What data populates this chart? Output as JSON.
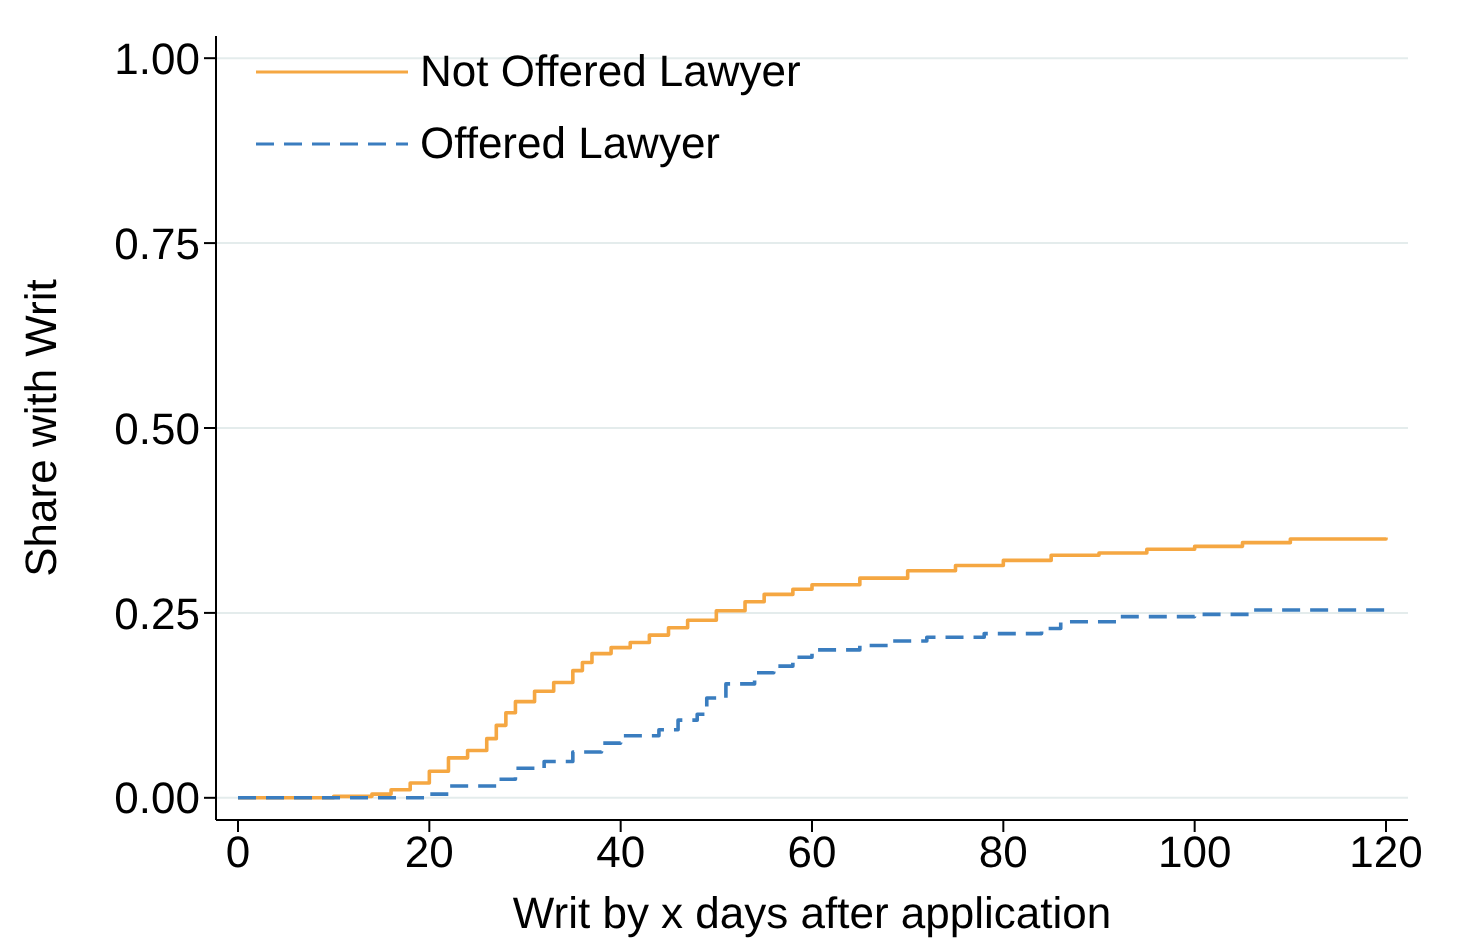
{
  "chart_data": {
    "type": "step",
    "xlabel": "Writ by x days after application",
    "ylabel": "Share with Writ",
    "xlim": [
      -2.3,
      122.3
    ],
    "xticks": [
      0,
      20,
      40,
      60,
      80,
      100,
      120
    ],
    "ylim": [
      -0.03,
      1.03
    ],
    "yticks": [
      {
        "value": 0,
        "label": "0.00"
      },
      {
        "value": 0.25,
        "label": "0.25"
      },
      {
        "value": 0.5,
        "label": "0.50"
      },
      {
        "value": 0.75,
        "label": "0.75"
      },
      {
        "value": 1,
        "label": "1.00"
      }
    ],
    "grid": "y",
    "legend": "top left",
    "marker": "none",
    "series": [
      {
        "name": "Not Offered Lawyer",
        "color": "#f5a742",
        "line_style": "solid",
        "x": [
          0,
          10,
          14,
          16,
          18,
          20,
          22,
          24,
          26,
          27,
          28,
          29,
          31,
          33,
          35,
          36,
          37,
          39,
          41,
          43,
          45,
          47,
          50,
          53,
          55,
          58,
          60,
          65,
          70,
          75,
          80,
          85,
          90,
          95,
          100,
          105,
          110,
          120
        ],
        "values": [
          0,
          0.002,
          0.005,
          0.011,
          0.02,
          0.036,
          0.054,
          0.064,
          0.08,
          0.098,
          0.115,
          0.13,
          0.144,
          0.156,
          0.172,
          0.183,
          0.195,
          0.203,
          0.21,
          0.22,
          0.23,
          0.24,
          0.253,
          0.265,
          0.275,
          0.282,
          0.288,
          0.297,
          0.307,
          0.314,
          0.321,
          0.328,
          0.331,
          0.336,
          0.34,
          0.345,
          0.35,
          0.352
        ]
      },
      {
        "name": "Offered Lawyer",
        "color": "#3a7dbf",
        "line_style": "dashed",
        "x": [
          0,
          15,
          20,
          22,
          27,
          29,
          32,
          35,
          38,
          40,
          44,
          46,
          48,
          49,
          51,
          54,
          56,
          58,
          60,
          65,
          68,
          72,
          78,
          84,
          86,
          92,
          100,
          106,
          120
        ],
        "values": [
          0,
          0,
          0.005,
          0.016,
          0.025,
          0.04,
          0.049,
          0.062,
          0.074,
          0.084,
          0.092,
          0.105,
          0.113,
          0.135,
          0.154,
          0.169,
          0.178,
          0.19,
          0.2,
          0.206,
          0.212,
          0.217,
          0.222,
          0.229,
          0.238,
          0.245,
          0.248,
          0.254,
          0.257
        ]
      }
    ]
  }
}
